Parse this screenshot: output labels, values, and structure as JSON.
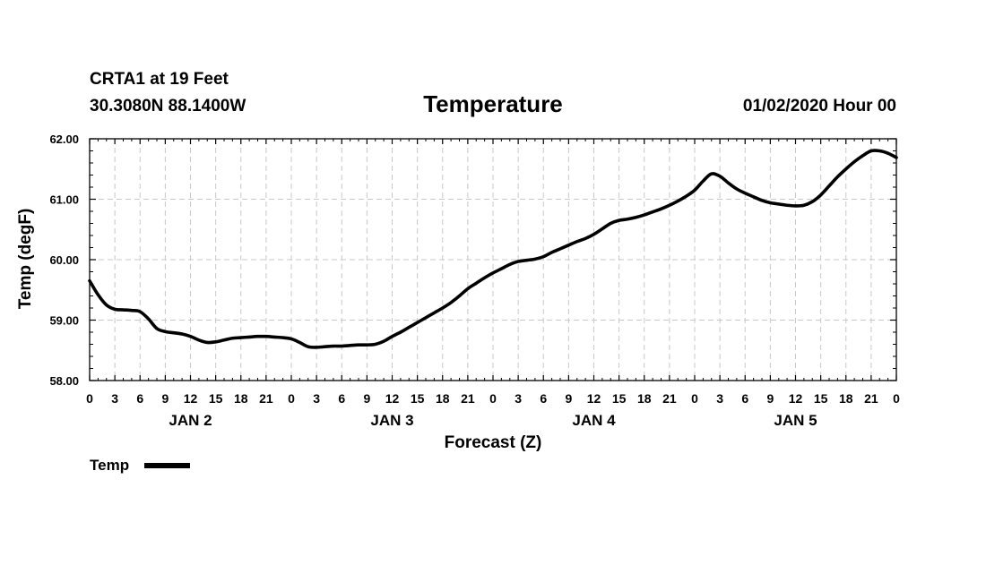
{
  "header": {
    "station": "CRTA1 at 19 Feet",
    "location": "30.3080N 88.1400W",
    "datetime": "01/02/2020 Hour 00"
  },
  "chart_data": {
    "type": "line",
    "title": "Temperature",
    "xlabel": "Forecast (Z)",
    "ylabel": "Temp (degF)",
    "xlim": [
      0,
      96
    ],
    "ylim": [
      58,
      62
    ],
    "y_ticks": [
      "58.00",
      "59.00",
      "60.00",
      "61.00",
      "62.00"
    ],
    "y_tick_values": [
      58,
      59,
      60,
      61,
      62
    ],
    "x_tick_labels": [
      "0",
      "3",
      "6",
      "9",
      "12",
      "15",
      "18",
      "21",
      "0",
      "3",
      "6",
      "9",
      "12",
      "15",
      "18",
      "21",
      "0",
      "3",
      "6",
      "9",
      "12",
      "15",
      "18",
      "21",
      "0",
      "3",
      "6",
      "9",
      "12",
      "15",
      "18",
      "21",
      "0"
    ],
    "day_labels": [
      {
        "label": "JAN 2",
        "hour": 12
      },
      {
        "label": "JAN 3",
        "hour": 36
      },
      {
        "label": "JAN 4",
        "hour": 60
      },
      {
        "label": "JAN 5",
        "hour": 84
      }
    ],
    "grid": true,
    "legend": {
      "position": "bottom-left",
      "entries": [
        "Temp"
      ]
    },
    "series": [
      {
        "name": "Temp",
        "color": "#000000",
        "x": [
          0,
          1,
          2,
          3,
          4,
          5,
          6,
          7,
          8,
          9,
          10,
          11,
          12,
          13,
          14,
          15,
          16,
          17,
          18,
          19,
          20,
          21,
          22,
          23,
          24,
          25,
          26,
          27,
          28,
          29,
          30,
          31,
          32,
          33,
          34,
          35,
          36,
          37,
          38,
          39,
          40,
          41,
          42,
          43,
          44,
          45,
          46,
          47,
          48,
          49,
          50,
          51,
          52,
          53,
          54,
          55,
          56,
          57,
          58,
          59,
          60,
          61,
          62,
          63,
          64,
          65,
          66,
          67,
          68,
          69,
          70,
          71,
          72,
          73,
          74,
          75,
          76,
          77,
          78,
          79,
          80,
          81,
          82,
          83,
          84,
          85,
          86,
          87,
          88,
          89,
          90,
          91,
          92,
          93,
          94,
          95,
          96
        ],
        "values": [
          59.65,
          59.42,
          59.25,
          59.18,
          59.17,
          59.16,
          59.14,
          59.02,
          58.86,
          58.81,
          58.79,
          58.77,
          58.73,
          58.67,
          58.63,
          58.64,
          58.67,
          58.7,
          58.71,
          58.72,
          58.73,
          58.73,
          58.72,
          58.71,
          58.69,
          58.63,
          58.56,
          58.55,
          58.56,
          58.57,
          58.57,
          58.58,
          58.59,
          58.59,
          58.6,
          58.65,
          58.73,
          58.8,
          58.88,
          58.96,
          59.04,
          59.12,
          59.2,
          59.29,
          59.4,
          59.52,
          59.61,
          59.7,
          59.78,
          59.85,
          59.92,
          59.97,
          59.99,
          60.01,
          60.05,
          60.12,
          60.18,
          60.24,
          60.3,
          60.35,
          60.42,
          60.51,
          60.6,
          60.65,
          60.67,
          60.7,
          60.74,
          60.79,
          60.84,
          60.9,
          60.97,
          61.05,
          61.15,
          61.3,
          61.42,
          61.38,
          61.27,
          61.17,
          61.1,
          61.04,
          60.98,
          60.94,
          60.92,
          60.9,
          60.89,
          60.9,
          60.96,
          61.07,
          61.22,
          61.37,
          61.5,
          61.62,
          61.72,
          61.8,
          61.8,
          61.76,
          61.69
        ]
      }
    ]
  }
}
